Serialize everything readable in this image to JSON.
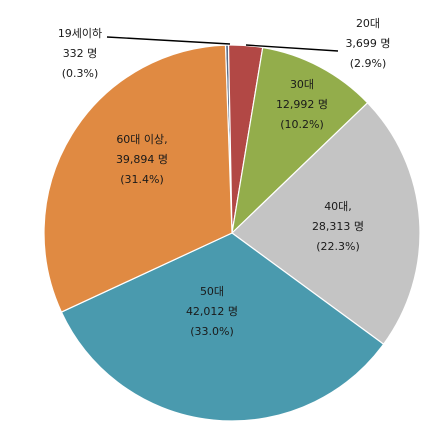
{
  "chart_data": {
    "type": "pie",
    "start_angle_deg": -2,
    "direction": "clockwise",
    "slices": [
      {
        "label": "19세이하",
        "count_text": "332 명",
        "pct_text": "(0.3%)",
        "value": 332,
        "percent": 0.3,
        "color": "#5b6f8a"
      },
      {
        "label": "20대",
        "count_text": "3,699 명",
        "pct_text": "(2.9%)",
        "value": 3699,
        "percent": 2.9,
        "color": "#b24845"
      },
      {
        "label": "30대",
        "count_text": "12,992 명",
        "pct_text": "(10.2%)",
        "value": 12992,
        "percent": 10.2,
        "color": "#93ad4b"
      },
      {
        "label": "40대,",
        "count_text": "28,313 명",
        "pct_text": "(22.3%)",
        "value": 28313,
        "percent": 22.3,
        "color": "#c4c4c4"
      },
      {
        "label": "50대",
        "count_text": "42,012 명",
        "pct_text": "(33.0%)",
        "value": 42012,
        "percent": 33.0,
        "color": "#4a9aae"
      },
      {
        "label": "60대 이상,",
        "count_text": "39,894 명",
        "pct_text": "(31.4%)",
        "value": 39894,
        "percent": 31.4,
        "color": "#e08a42"
      }
    ]
  }
}
